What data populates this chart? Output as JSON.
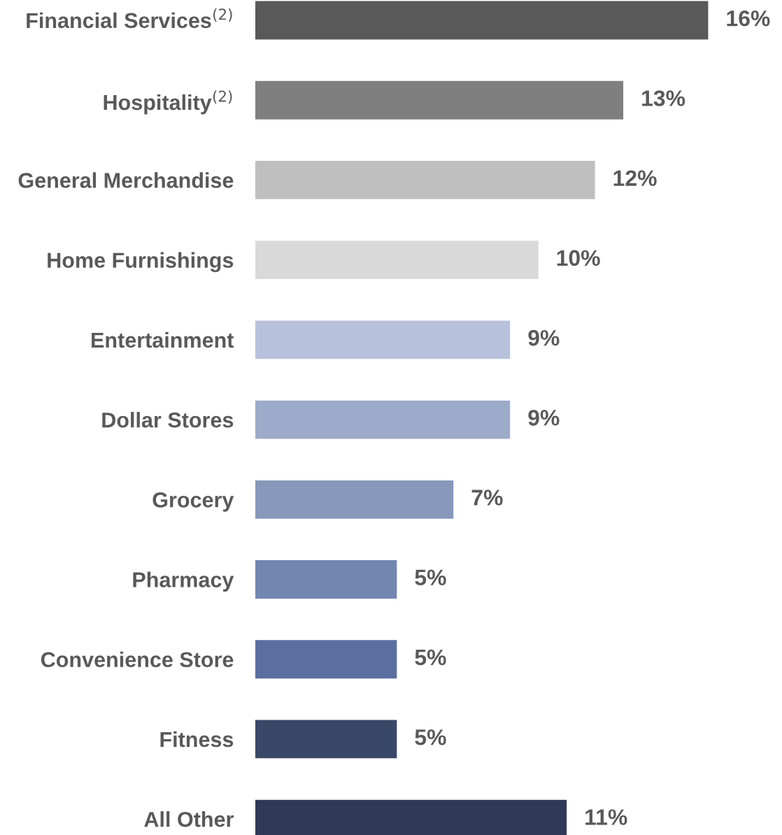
{
  "chart_data": {
    "type": "bar",
    "orientation": "horizontal",
    "categories": [
      "Financial Services$^{(2)}$",
      "Hospitality$^{(2)}$",
      "General Merchandise",
      "Home Furnishings",
      "Entertainment",
      "Dollar Stores",
      "Grocery",
      "Pharmacy",
      "Convenience Store",
      "Fitness",
      "All Other"
    ],
    "values": [
      16,
      13,
      12,
      10,
      9,
      9,
      7,
      5,
      5,
      5,
      11
    ],
    "value_labels": [
      "16%",
      "13%",
      "12%",
      "10%",
      "9%",
      "9%",
      "7%",
      "5%",
      "5%",
      "5%",
      "11%"
    ],
    "colors": [
      "#595959",
      "#7f7f7f",
      "#bfbfbf",
      "#d9d9d9",
      "#b8c1db",
      "#9dabca",
      "#8798bb",
      "#7286b2",
      "#5a6ea0",
      "#3a4868",
      "#2f3a58"
    ],
    "tick_labels": "y",
    "grid": false,
    "legend": false
  }
}
